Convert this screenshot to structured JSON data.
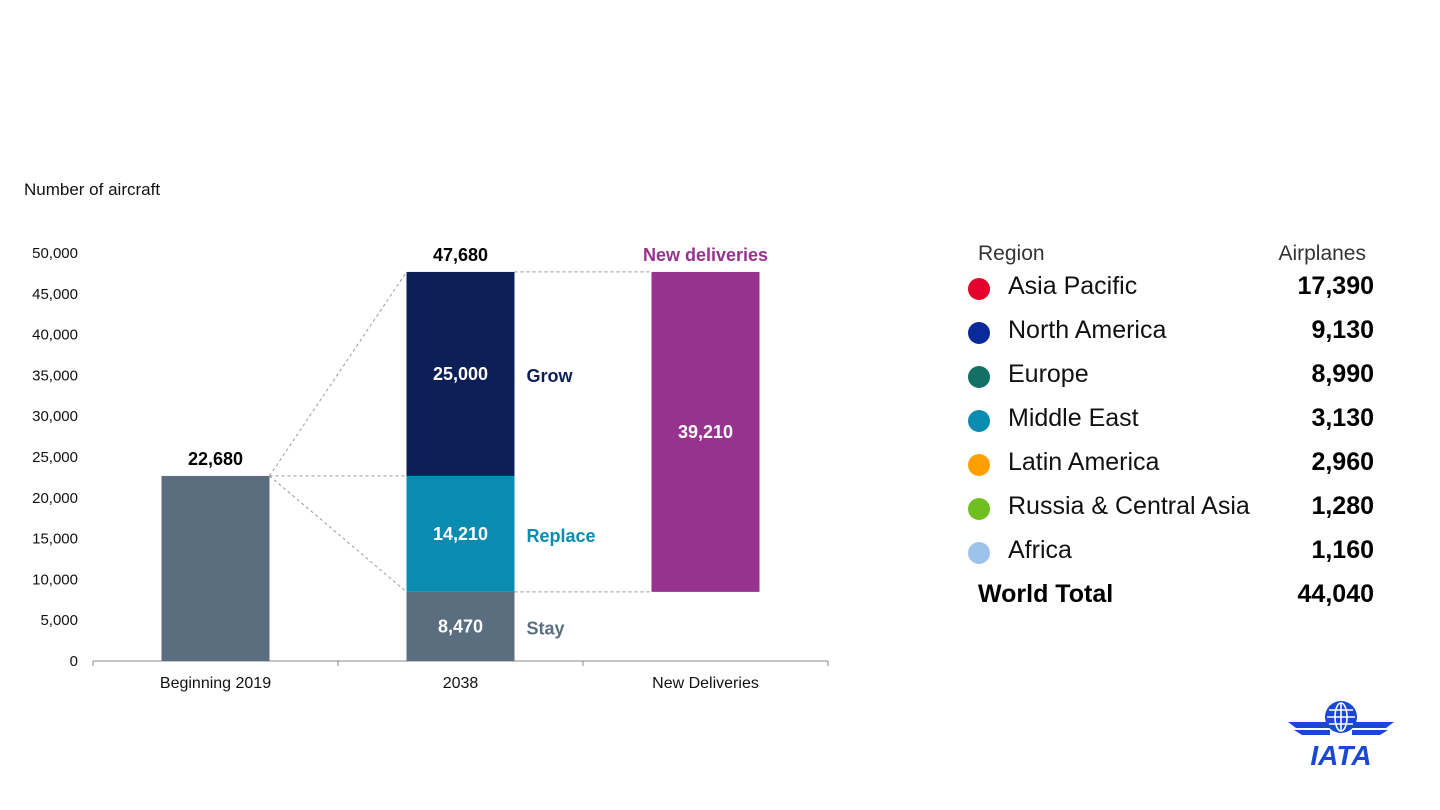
{
  "chart_data": {
    "type": "bar",
    "ylabel": "Number of aircraft",
    "ylim": [
      0,
      50000
    ],
    "yticks": [
      0,
      5000,
      10000,
      15000,
      20000,
      25000,
      30000,
      35000,
      40000,
      45000,
      50000
    ],
    "ytick_labels": [
      "0",
      "5,000",
      "10,000",
      "15,000",
      "20,000",
      "25,000",
      "30,000",
      "35,000",
      "40,000",
      "45,000",
      "50,000"
    ],
    "categories": [
      "Beginning 2019",
      "2038",
      "New Deliveries"
    ],
    "bars": [
      {
        "category": "Beginning 2019",
        "total_label": "22,680",
        "segments": [
          {
            "name": "",
            "value": 22680,
            "label": "",
            "color": "#5b6e80"
          }
        ]
      },
      {
        "category": "2038",
        "total_label": "47,680",
        "segments": [
          {
            "name": "Stay",
            "value": 8470,
            "label": "8,470",
            "color": "#5b6e80",
            "name_color": "#5b6e80"
          },
          {
            "name": "Replace",
            "value": 14210,
            "label": "14,210",
            "color": "#0a8bb0",
            "name_color": "#0a8bb0"
          },
          {
            "name": "Grow",
            "value": 25000,
            "label": "25,000",
            "color": "#0e1f57",
            "name_color": "#0e1f57"
          }
        ]
      },
      {
        "category": "New Deliveries",
        "total_label": "New deliveries",
        "total_label_color": "#97338f",
        "segments": [
          {
            "name": "",
            "value": 8470,
            "label": "",
            "color": "transparent"
          },
          {
            "name": "",
            "value": 39210,
            "label": "39,210",
            "color": "#97338f"
          }
        ]
      }
    ]
  },
  "region_table": {
    "header_region": "Region",
    "header_value": "Airplanes",
    "rows": [
      {
        "region": "Asia Pacific",
        "value": "17,390",
        "color": "#e4002b"
      },
      {
        "region": "North America",
        "value": "9,130",
        "color": "#0a2a9a"
      },
      {
        "region": "Europe",
        "value": "8,990",
        "color": "#137064"
      },
      {
        "region": "Middle East",
        "value": "3,130",
        "color": "#0a8bb0"
      },
      {
        "region": "Latin America",
        "value": "2,960",
        "color": "#ffa000"
      },
      {
        "region": "Russia & Central Asia",
        "value": "1,280",
        "color": "#6ebf1f"
      },
      {
        "region": "Africa",
        "value": "1,160",
        "color": "#9ec3ea"
      }
    ],
    "total_label": "World Total",
    "total_value": "44,040"
  },
  "logo": {
    "text": "IATA",
    "color": "#1a47d6"
  }
}
